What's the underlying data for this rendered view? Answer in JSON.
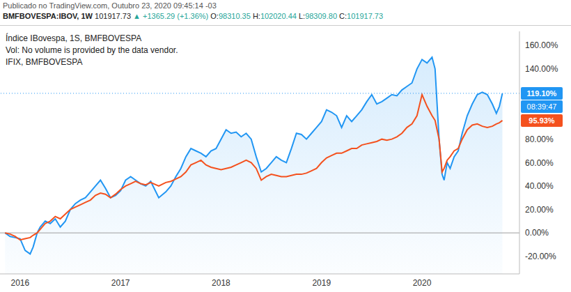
{
  "header": {
    "published": "Publicado no TradingView.com, Outubro 23, 2020 09:45:14 -03",
    "symbol": "BMFBOVESPA:IBOV, 1W",
    "last": "101917.73",
    "change": "▲ +1365.29 (+1.36%)",
    "ohlc": [
      {
        "label": "O:",
        "value": "98310.35"
      },
      {
        "label": "H:",
        "value": "102020.44"
      },
      {
        "label": "L:",
        "value": "98309.80"
      },
      {
        "label": "C:",
        "value": "101917.73"
      }
    ]
  },
  "chart_data": {
    "type": "line",
    "legend_note": "Vol: No volume is provided by the data vendor.",
    "x": [
      2015.85,
      2015.9,
      2015.95,
      2016.0,
      2016.05,
      2016.1,
      2016.13,
      2016.17,
      2016.2,
      2016.25,
      2016.3,
      2016.35,
      2016.4,
      2016.45,
      2016.5,
      2016.55,
      2016.6,
      2016.65,
      2016.7,
      2016.75,
      2016.8,
      2016.85,
      2016.9,
      2016.95,
      2017.0,
      2017.05,
      2017.1,
      2017.15,
      2017.2,
      2017.25,
      2017.3,
      2017.38,
      2017.45,
      2017.5,
      2017.55,
      2017.6,
      2017.65,
      2017.7,
      2017.75,
      2017.8,
      2017.85,
      2017.9,
      2017.95,
      2018.0,
      2018.05,
      2018.1,
      2018.15,
      2018.2,
      2018.25,
      2018.3,
      2018.35,
      2018.4,
      2018.45,
      2018.5,
      2018.55,
      2018.6,
      2018.65,
      2018.7,
      2018.75,
      2018.8,
      2018.85,
      2018.9,
      2018.95,
      2019.0,
      2019.05,
      2019.1,
      2019.15,
      2019.2,
      2019.25,
      2019.3,
      2019.35,
      2019.4,
      2019.45,
      2019.5,
      2019.55,
      2019.6,
      2019.65,
      2019.7,
      2019.75,
      2019.8,
      2019.85,
      2019.9,
      2019.95,
      2020.0,
      2020.05,
      2020.1,
      2020.13,
      2020.17,
      2020.2,
      2020.22,
      2020.25,
      2020.28,
      2020.32,
      2020.36,
      2020.4,
      2020.45,
      2020.5,
      2020.55,
      2020.6,
      2020.65,
      2020.7,
      2020.74,
      2020.77,
      2020.8
    ],
    "series": [
      {
        "name": "Índice IBovespa, 1S, BMFBOVESPA",
        "type": "area",
        "color": "#2196f3",
        "last_label": "119.10%",
        "countdown": "08:39:47",
        "values": [
          0,
          -3,
          -4,
          -5,
          -15,
          -18,
          -12,
          0,
          5,
          10,
          8,
          12,
          5,
          10,
          20,
          25,
          28,
          30,
          35,
          40,
          45,
          38,
          30,
          32,
          36,
          45,
          48,
          45,
          42,
          40,
          44,
          30,
          35,
          40,
          48,
          55,
          65,
          72,
          70,
          68,
          65,
          70,
          72,
          80,
          88,
          85,
          86,
          82,
          85,
          80,
          65,
          52,
          55,
          60,
          65,
          62,
          60,
          72,
          85,
          84,
          80,
          85,
          90,
          95,
          105,
          103,
          100,
          90,
          100,
          95,
          100,
          105,
          112,
          118,
          110,
          112,
          115,
          118,
          117,
          122,
          125,
          128,
          140,
          148,
          145,
          150,
          140,
          80,
          50,
          45,
          60,
          55,
          65,
          70,
          85,
          100,
          110,
          118,
          120,
          118,
          110,
          102,
          108,
          119.1
        ]
      },
      {
        "name": "IFIX, BMFBOVESPA",
        "type": "line",
        "color": "#f4511e",
        "last_label": "95.93%",
        "values": [
          0,
          -1,
          -3,
          -6,
          -5,
          -4,
          -2,
          0,
          3,
          8,
          10,
          14,
          12,
          16,
          20,
          22,
          24,
          26,
          28,
          32,
          34,
          33,
          30,
          33,
          37,
          40,
          42,
          44,
          42,
          41,
          43,
          40,
          43,
          44,
          46,
          48,
          52,
          58,
          60,
          62,
          58,
          56,
          55,
          54,
          55,
          56,
          58,
          60,
          62,
          60,
          55,
          45,
          48,
          50,
          49,
          48,
          48,
          49,
          50,
          50,
          51,
          53,
          55,
          60,
          64,
          66,
          68,
          68,
          70,
          72,
          72,
          75,
          76,
          77,
          78,
          80,
          79,
          80,
          82,
          85,
          90,
          93,
          100,
          118,
          108,
          100,
          96,
          80,
          52,
          55,
          62,
          65,
          70,
          72,
          80,
          88,
          92,
          93,
          91,
          90,
          91,
          93,
          94,
          95.93
        ]
      }
    ],
    "baseline": 0,
    "xlim": [
      2015.8,
      2020.97
    ],
    "xticks": [
      2016,
      2017,
      2018,
      2019,
      2020
    ],
    "ylim": [
      -35,
      172
    ],
    "yticks": [
      {
        "value": 160,
        "label": "160.00%"
      },
      {
        "value": 140,
        "label": "140.00%"
      },
      {
        "value": 80,
        "label": "80.00%"
      },
      {
        "value": 60,
        "label": "60.00%"
      },
      {
        "value": 40,
        "label": "40.00%"
      },
      {
        "value": 20,
        "label": "20.00%"
      },
      {
        "value": 0,
        "label": "0.00%"
      },
      {
        "value": -20,
        "label": "-20.00%"
      }
    ],
    "grid": false
  }
}
